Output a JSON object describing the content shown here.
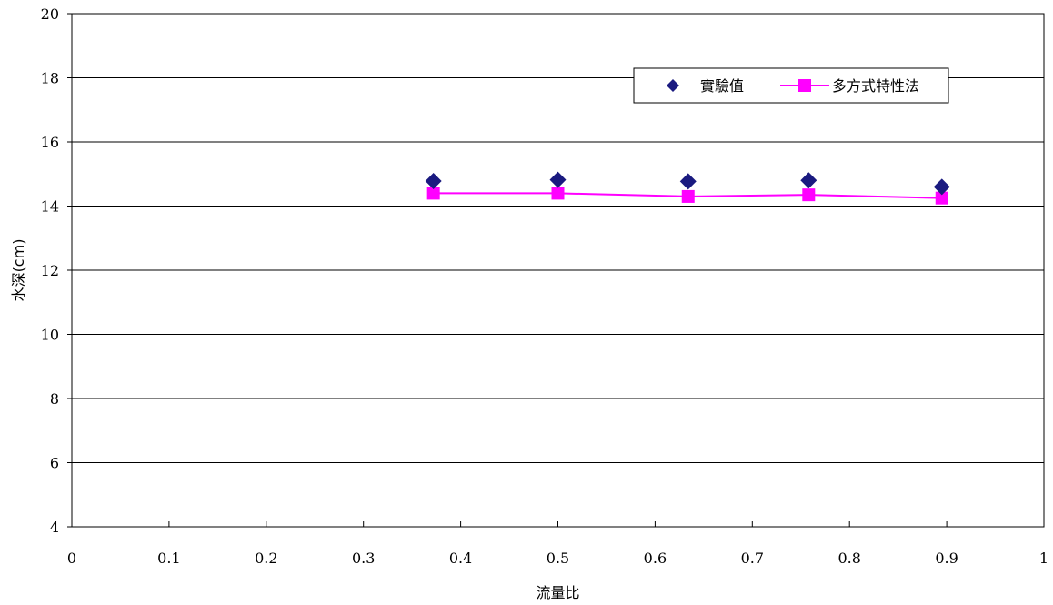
{
  "chart_data": {
    "type": "line",
    "title": "",
    "xlabel": "流量比",
    "ylabel": "水深(cm)",
    "xlim": [
      0,
      1
    ],
    "ylim": [
      4,
      20
    ],
    "x_ticks": [
      0,
      0.1,
      0.2,
      0.3,
      0.4,
      0.5,
      0.6,
      0.7,
      0.8,
      0.9,
      1
    ],
    "y_ticks": [
      4,
      6,
      8,
      10,
      12,
      14,
      16,
      18,
      20
    ],
    "grid": "horizontal",
    "legend_position": "top-right",
    "series": [
      {
        "name": "實驗值",
        "style": "markers",
        "marker": "diamond",
        "color": "#1a1a80",
        "points": [
          [
            0.372,
            14.78
          ],
          [
            0.5,
            14.82
          ],
          [
            0.634,
            14.77
          ],
          [
            0.758,
            14.8
          ],
          [
            0.895,
            14.6
          ]
        ]
      },
      {
        "name": "多方式特性法",
        "style": "line-markers",
        "marker": "square",
        "color": "#ff00ff",
        "points": [
          [
            0.372,
            14.4
          ],
          [
            0.5,
            14.4
          ],
          [
            0.634,
            14.3
          ],
          [
            0.758,
            14.35
          ],
          [
            0.895,
            14.25
          ]
        ]
      }
    ]
  }
}
